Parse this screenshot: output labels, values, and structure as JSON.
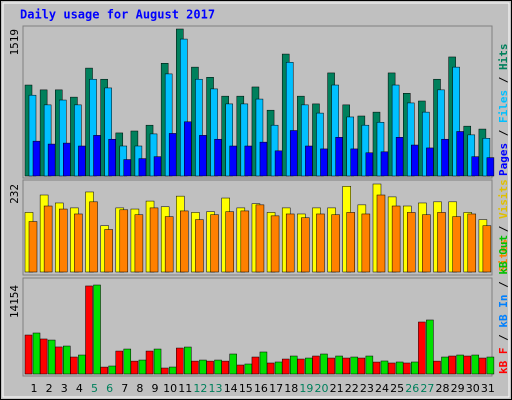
{
  "chart_data": {
    "type": "bar",
    "title": "Daily usage for August 2017",
    "categories": [
      "1",
      "2",
      "3",
      "4",
      "5",
      "6",
      "7",
      "8",
      "9",
      "10",
      "11",
      "12",
      "13",
      "14",
      "15",
      "16",
      "17",
      "18",
      "19",
      "20",
      "21",
      "22",
      "23",
      "24",
      "25",
      "26",
      "27",
      "28",
      "29",
      "30",
      "31"
    ],
    "highlight_categories": [
      4,
      5,
      11,
      12,
      18,
      19,
      25,
      26
    ],
    "highlight_color": "#00805c",
    "legend_separator": "/",
    "panels": [
      {
        "ylim": [
          0,
          1519
        ],
        "yticks": [
          1519
        ],
        "series": [
          {
            "name": "Hits",
            "color": "#00805c",
            "values": [
              940,
              890,
              890,
              815,
              1115,
              1000,
              445,
              465,
              525,
              1165,
              1519,
              1125,
              1020,
              825,
              825,
              920,
              680,
              1260,
              825,
              745,
              1065,
              735,
              620,
              660,
              1065,
              855,
              775,
              1000,
              1230,
              515,
              485
            ]
          },
          {
            "name": "Files",
            "color": "#00c0ff",
            "values": [
              835,
              735,
              785,
              735,
              1000,
              910,
              310,
              310,
              435,
              1055,
              1415,
              1000,
              900,
              745,
              745,
              795,
              525,
              1175,
              735,
              650,
              940,
              610,
              525,
              555,
              940,
              755,
              660,
              890,
              1125,
              425,
              390
            ]
          },
          {
            "name": "Pages",
            "color": "#0000ff",
            "values": [
              360,
              330,
              340,
              310,
              420,
              380,
              170,
              180,
              200,
              440,
              560,
              420,
              380,
              310,
              310,
              350,
              260,
              470,
              310,
              280,
              400,
              280,
              240,
              250,
              400,
              320,
              290,
              380,
              460,
              200,
              190
            ]
          }
        ]
      },
      {
        "ylim": [
          0,
          232
        ],
        "yticks": [
          232
        ],
        "series": [
          {
            "name": "Visits",
            "color": "#ffff00",
            "values": [
              157,
              203,
              182,
              169,
              211,
              122,
              169,
              166,
              187,
              172,
              200,
              157,
              159,
              195,
              169,
              180,
              157,
              169,
              153,
              169,
              169,
              226,
              177,
              232,
              198,
              174,
              182,
              185,
              185,
              157,
              138
            ]
          },
          {
            "name": "Sites",
            "color": "#ff8000",
            "values": [
              133,
              174,
              166,
              153,
              185,
              112,
              164,
              151,
              169,
              146,
              161,
              138,
              151,
              159,
              161,
              177,
              148,
              153,
              143,
              153,
              151,
              157,
              153,
              203,
              174,
              157,
              151,
              157,
              146,
              153,
              122
            ]
          }
        ]
      },
      {
        "ylim": [
          0,
          14154
        ],
        "yticks": [
          14154
        ],
        "series": [
          {
            "name": "kB F",
            "color": "#ff0000",
            "values": [
              6200,
              5570,
              4300,
              2700,
              14000,
              1100,
              3650,
              2050,
              3650,
              950,
              4130,
              2050,
              2050,
              2050,
              1430,
              2700,
              1750,
              2380,
              2380,
              2860,
              2540,
              2540,
              2540,
              1900,
              1750,
              1750,
              8270,
              2050,
              2860,
              2860,
              2540
            ]
          },
          {
            "name": "kB In",
            "color": "#0080ff",
            "values": [
              0,
              0,
              0,
              0,
              0,
              0,
              0,
              0,
              0,
              0,
              0,
              0,
              0,
              0,
              0,
              0,
              0,
              0,
              0,
              0,
              0,
              0,
              0,
              0,
              0,
              0,
              0,
              0,
              0,
              0,
              0
            ]
          },
          {
            "name": "kB Out",
            "color": "#00e000",
            "values": [
              6520,
              5400,
              4450,
              3020,
              14154,
              1270,
              3970,
              2220,
              3970,
              1110,
              4290,
              2220,
              2220,
              3180,
              1590,
              3500,
              1910,
              2860,
              2540,
              3180,
              2860,
              2700,
              2860,
              2070,
              1910,
              1910,
              8590,
              2700,
              3020,
              3020,
              2700
            ]
          }
        ]
      }
    ]
  }
}
